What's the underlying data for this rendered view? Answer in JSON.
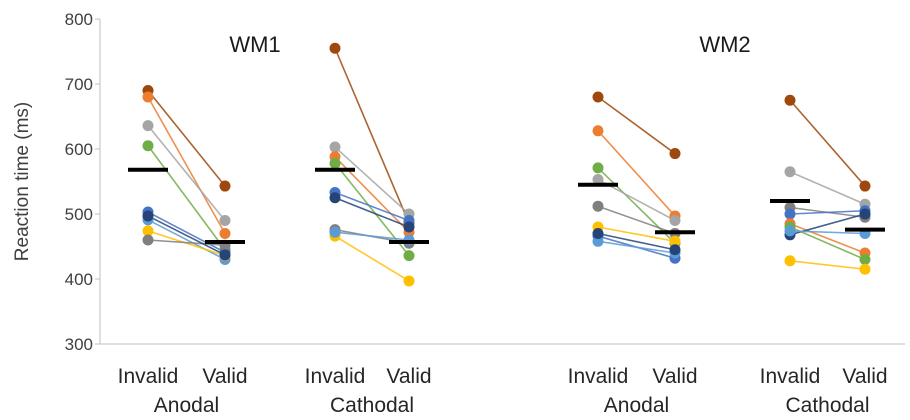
{
  "chart_data": {
    "type": "scatter",
    "ylabel": "Reaction time (ms)",
    "ylim": [
      300,
      800
    ],
    "yticks": [
      300,
      400,
      500,
      600,
      700,
      800
    ],
    "grid": false,
    "panels": [
      {
        "title": "WM1",
        "conditions": [
          {
            "name": "Anodal",
            "categories": [
              "Invalid",
              "Valid"
            ],
            "mean": [
              568,
              457
            ],
            "subjects": [
              {
                "color": "#9E480E",
                "values": [
                  690,
                  543
                ]
              },
              {
                "color": "#ED7D31",
                "values": [
                  680,
                  470
                ]
              },
              {
                "color": "#A5A5A5",
                "values": [
                  636,
                  490
                ]
              },
              {
                "color": "#70AD47",
                "values": [
                  605,
                  445
                ]
              },
              {
                "color": "#4472C4",
                "values": [
                  503,
                  441
                ]
              },
              {
                "color": "#5B9BD5",
                "values": [
                  491,
                  430
                ]
              },
              {
                "color": "#FFC000",
                "values": [
                  474,
                  436
                ]
              },
              {
                "color": "#7F7F7F",
                "values": [
                  460,
                  452
                ]
              },
              {
                "color": "#264478",
                "values": [
                  497,
                  437
                ]
              }
            ]
          },
          {
            "name": "Cathodal",
            "categories": [
              "Invalid",
              "Valid"
            ],
            "mean": [
              568,
              457
            ],
            "subjects": [
              {
                "color": "#9E480E",
                "values": [
                  755,
                  486
                ]
              },
              {
                "color": "#A5A5A5",
                "values": [
                  603,
                  500
                ]
              },
              {
                "color": "#ED7D31",
                "values": [
                  588,
                  472
                ]
              },
              {
                "color": "#70AD47",
                "values": [
                  578,
                  436
                ]
              },
              {
                "color": "#4472C4",
                "values": [
                  533,
                  490
                ]
              },
              {
                "color": "#264478",
                "values": [
                  525,
                  480
                ]
              },
              {
                "color": "#7F7F7F",
                "values": [
                  476,
                  455
                ]
              },
              {
                "color": "#FFC000",
                "values": [
                  466,
                  397
                ]
              },
              {
                "color": "#5B9BD5",
                "values": [
                  472,
                  460
                ]
              }
            ]
          }
        ]
      },
      {
        "title": "WM2",
        "conditions": [
          {
            "name": "Anodal",
            "categories": [
              "Invalid",
              "Valid"
            ],
            "mean": [
              545,
              472
            ],
            "subjects": [
              {
                "color": "#9E480E",
                "values": [
                  680,
                  593
                ]
              },
              {
                "color": "#ED7D31",
                "values": [
                  628,
                  497
                ]
              },
              {
                "color": "#70AD47",
                "values": [
                  571,
                  455
                ]
              },
              {
                "color": "#A5A5A5",
                "values": [
                  553,
                  490
                ]
              },
              {
                "color": "#7F7F7F",
                "values": [
                  512,
                  470
                ]
              },
              {
                "color": "#FFC000",
                "values": [
                  480,
                  458
                ]
              },
              {
                "color": "#4472C4",
                "values": [
                  466,
                  432
                ]
              },
              {
                "color": "#5B9BD5",
                "values": [
                  458,
                  440
                ]
              },
              {
                "color": "#264478",
                "values": [
                  470,
                  445
                ]
              }
            ]
          },
          {
            "name": "Cathodal",
            "categories": [
              "Invalid",
              "Valid"
            ],
            "mean": [
              520,
              476
            ],
            "subjects": [
              {
                "color": "#9E480E",
                "values": [
                  675,
                  543
                ]
              },
              {
                "color": "#A5A5A5",
                "values": [
                  565,
                  515
                ]
              },
              {
                "color": "#7F7F7F",
                "values": [
                  510,
                  495
                ]
              },
              {
                "color": "#4472C4",
                "values": [
                  500,
                  505
                ]
              },
              {
                "color": "#ED7D31",
                "values": [
                  485,
                  440
                ]
              },
              {
                "color": "#264478",
                "values": [
                  468,
                  500
                ]
              },
              {
                "color": "#70AD47",
                "values": [
                  480,
                  430
                ]
              },
              {
                "color": "#5B9BD5",
                "values": [
                  474,
                  470
                ]
              },
              {
                "color": "#FFC000",
                "values": [
                  428,
                  415
                ]
              }
            ]
          }
        ]
      }
    ]
  }
}
